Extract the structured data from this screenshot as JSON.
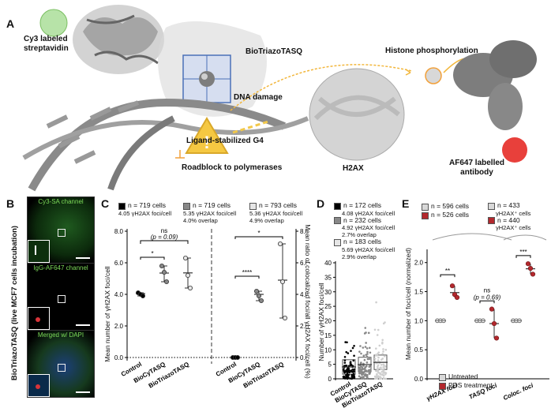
{
  "panelA": {
    "label": "A",
    "cy3": "Cy3 labeled\nstreptavidin",
    "biotriazotasq": "BioTriazoTASQ",
    "dna_damage": "DNA damage",
    "histone": "Histone phosphorylation",
    "ligand": "Ligand-stabilized G4",
    "roadblock": "Roadblock to polymerases",
    "h2ax": "H2AX",
    "af647": "AF647 labelled\nantibody"
  },
  "panelB": {
    "label": "B",
    "side_label": "BioTriazoTASQ (live MCF7 cells incubation)",
    "ch1": "Cy3-SA channel",
    "ch2": "IgG-AF647 channel",
    "ch3": "Merged w/ DAPI"
  },
  "panelC": {
    "label": "C",
    "legend": [
      {
        "n": "n = 719 cells",
        "detail": "4.05 γH2AX foci/cell"
      },
      {
        "n": "n = 719 cells",
        "detail": "5.35 γH2AX foci/cell",
        "detail2": "4.0% overlap"
      },
      {
        "n": "n = 793 cells",
        "detail": "5.36 γH2AX foci/cell",
        "detail2": "4.9% overlap"
      }
    ],
    "ylabel_left": "Mean number of γH2AX foci/cell",
    "ylabel_right": "Mean ratio of colocalized foci/all γH2AX foci/cell (%)",
    "yticks": [
      "0.0",
      "2.0",
      "4.0",
      "6.0",
      "8.0"
    ],
    "xcats": [
      "Control",
      "BioCyTASQ",
      "BioTriazoTASQ"
    ],
    "ns": "ns",
    "p": "(p = 0.09)",
    "star1": "*",
    "star2": "****",
    "star3": "*"
  },
  "panelD": {
    "label": "D",
    "legend": [
      {
        "n": "n = 172 cells",
        "detail": "4.08 γH2AX foci/cell"
      },
      {
        "n": "n = 232 cells",
        "detail": "4.92 γH2AX foci/cell",
        "detail2": "2.7% overlap"
      },
      {
        "n": "n = 183 cells",
        "detail": "5.69 γH2AX foci/cell",
        "detail2": "2.9% overlap"
      }
    ],
    "ylabel": "Number of γH2AX foci/cell",
    "yticks": [
      "0",
      "5",
      "10",
      "15",
      "20",
      "25",
      "30",
      "35",
      "40"
    ],
    "xcats": [
      "Control",
      "BioCyTASQ",
      "BioTriazoTASQ"
    ]
  },
  "panelE": {
    "label": "E",
    "legend": [
      {
        "n": "n = 596 cells"
      },
      {
        "n": "n = 526 cells"
      },
      {
        "n": "n = 433",
        "detail": "γH2AX⁺ cells"
      },
      {
        "n": "n = 440",
        "detail": "γH2AX⁺ cells"
      }
    ],
    "ylabel": "Mean number of foci/cell (normalized)",
    "yticks": [
      "0.0",
      "0.5",
      "1.0",
      "1.5",
      "2.0"
    ],
    "xcats": [
      "γH2AX foci",
      "TASQ foci",
      "Coloc. foci"
    ],
    "sig1": "**",
    "sig2": "ns",
    "sig2p": "(p = 0.69)",
    "sig3": "***",
    "leg_untreated": "Untreated",
    "leg_pds": "PDS treatment"
  },
  "colors": {
    "pds": "#b3282d",
    "green": "#3da33d",
    "grey": "#888888"
  },
  "chart_data": [
    {
      "type": "scatter",
      "title": "",
      "ylabel": "Mean number of γH2AX foci/cell",
      "categories": [
        "Control",
        "BioCyTASQ",
        "BioTriazoTASQ"
      ],
      "ylim": [
        0,
        8
      ],
      "series": [
        {
          "name": "γH2AX foci",
          "points": [
            [
              4.1,
              4.0,
              3.9
            ],
            [
              5.8,
              5.4,
              4.8
            ],
            [
              6.3,
              5.2,
              4.4
            ]
          ],
          "means": [
            4.05,
            5.35,
            5.36
          ]
        }
      ]
    },
    {
      "type": "scatter",
      "ylabel": "Mean ratio of colocalized foci/all γH2AX foci/cell (%)",
      "categories": [
        "Control",
        "BioCyTASQ",
        "BioTriazoTASQ"
      ],
      "ylim": [
        0,
        8
      ],
      "series": [
        {
          "name": "coloc ratio",
          "points": [
            [
              0,
              0,
              0
            ],
            [
              4.2,
              3.9,
              3.6
            ],
            [
              7.2,
              4.8,
              2.5
            ]
          ],
          "means": [
            0,
            4.0,
            4.9
          ]
        }
      ]
    },
    {
      "type": "scatter",
      "ylabel": "Number of γH2AX foci/cell",
      "categories": [
        "Control",
        "BioCyTASQ",
        "BioTriazoTASQ"
      ],
      "ylim": [
        0,
        40
      ],
      "series": [
        {
          "name": "Control",
          "n": 172,
          "mean": 4.08
        },
        {
          "name": "BioCyTASQ",
          "n": 232,
          "mean": 4.92
        },
        {
          "name": "BioTriazoTASQ",
          "n": 183,
          "mean": 5.69
        }
      ]
    },
    {
      "type": "scatter",
      "ylabel": "Mean number of foci/cell (normalized)",
      "categories": [
        "γH2AX foci",
        "TASQ foci",
        "Coloc. foci"
      ],
      "ylim": [
        0,
        2.2
      ],
      "series": [
        {
          "name": "Untreated",
          "values": [
            [
              1,
              1,
              1
            ],
            [
              1,
              1,
              1
            ],
            [
              1,
              1,
              1
            ]
          ]
        },
        {
          "name": "PDS treatment",
          "values": [
            [
              1.6,
              1.45,
              1.4
            ],
            [
              1.2,
              0.95,
              0.7
            ],
            [
              1.98,
              1.9,
              1.8
            ]
          ]
        }
      ]
    }
  ]
}
